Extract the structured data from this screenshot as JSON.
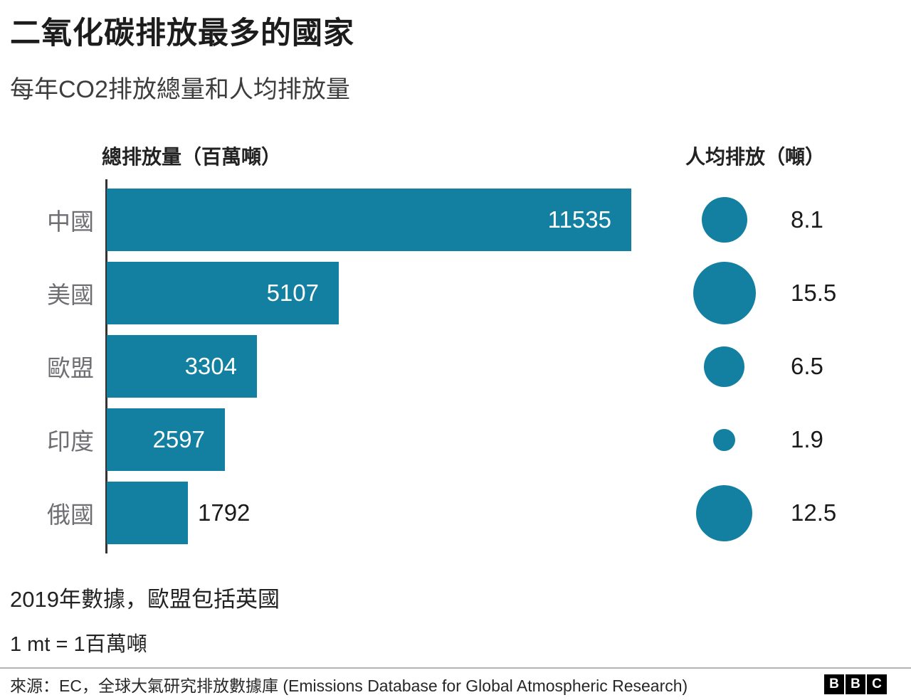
{
  "header": {
    "title": "二氧化碳排放最多的國家",
    "subtitle": "每年CO2排放總量和人均排放量"
  },
  "chart_data": {
    "type": "bar",
    "title": "二氧化碳排放最多的國家",
    "subtitle": "每年CO2排放總量和人均排放量",
    "categories": [
      "中國",
      "美國",
      "歐盟",
      "印度",
      "俄國"
    ],
    "series": [
      {
        "name": "總排放量（百萬噸）",
        "values": [
          11535,
          5107,
          3304,
          2597,
          1792
        ]
      },
      {
        "name": "人均排放（噸）",
        "values": [
          8.1,
          15.5,
          6.5,
          1.9,
          12.5
        ]
      }
    ],
    "axis_titles": {
      "bars": "總排放量（百萬噸）",
      "bubbles": "人均排放（噸）"
    },
    "xlim": [
      0,
      11535
    ],
    "bar_color": "#1380A1",
    "orientation": "horizontal",
    "grid": false,
    "legend_position": "none",
    "bubble_scale": "area-proportional"
  },
  "notes": {
    "line1": "2019年數據，歐盟包括英國",
    "line2": "1 mt = 1百萬噸"
  },
  "footer": {
    "source": "來源：EC，全球大氣研究排放數據庫 (Emissions Database for Global Atmospheric Research)",
    "logo": [
      "B",
      "B",
      "C"
    ]
  }
}
